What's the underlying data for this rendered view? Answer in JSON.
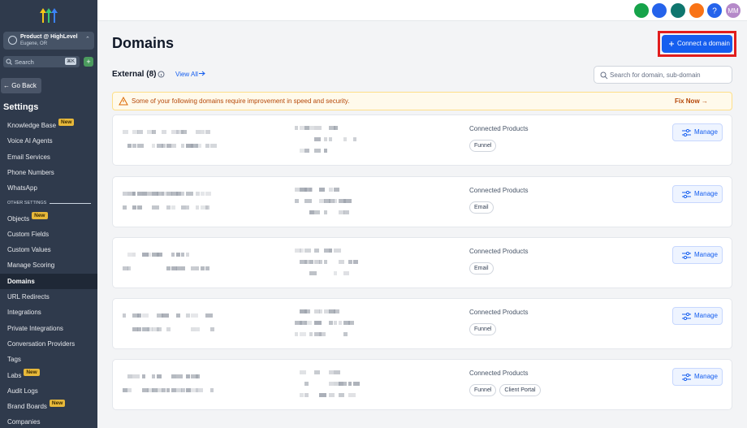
{
  "sidebar": {
    "account": {
      "name": "Product @ HighLevel",
      "location": "Eugene, OR"
    },
    "search": {
      "placeholder": "Search",
      "shortcut": "⌘K"
    },
    "back": "Go Back",
    "heading": "Settings",
    "main_items": [
      {
        "label": "Knowledge Base",
        "badge": "New"
      },
      {
        "label": "Voice AI Agents"
      },
      {
        "label": "Email Services"
      },
      {
        "label": "Phone Numbers"
      },
      {
        "label": "WhatsApp"
      }
    ],
    "other_label": "OTHER SETTINGS",
    "other_items": [
      {
        "label": "Objects",
        "badge": "New"
      },
      {
        "label": "Custom Fields"
      },
      {
        "label": "Custom Values"
      },
      {
        "label": "Manage Scoring"
      },
      {
        "label": "Domains",
        "active": true
      },
      {
        "label": "URL Redirects"
      },
      {
        "label": "Integrations"
      },
      {
        "label": "Private Integrations"
      },
      {
        "label": "Conversation Providers"
      },
      {
        "label": "Tags"
      },
      {
        "label": "Labs",
        "badge": "New"
      },
      {
        "label": "Audit Logs"
      },
      {
        "label": "Brand Boards",
        "badge": "New"
      },
      {
        "label": "Companies"
      }
    ]
  },
  "topbar": {
    "help": "?",
    "avatar": "MM"
  },
  "header": {
    "title": "Domains",
    "action": "Connect a domain"
  },
  "toolbar": {
    "tab": "External (8)",
    "view_all": "View All",
    "search_placeholder": "Search for domain, sub-domain"
  },
  "banner": {
    "message": "Some of your following domains require improvement in speed and security.",
    "action": "Fix Now"
  },
  "domains": [
    {
      "products_label": "Connected Products",
      "products": [
        "Funnel"
      ],
      "action": "Manage"
    },
    {
      "products_label": "Connected Products",
      "products": [
        "Email"
      ],
      "action": "Manage"
    },
    {
      "products_label": "Connected Products",
      "products": [
        "Email"
      ],
      "action": "Manage"
    },
    {
      "products_label": "Connected Products",
      "products": [
        "Funnel"
      ],
      "action": "Manage"
    },
    {
      "products_label": "Connected Products",
      "products": [
        "Funnel",
        "Client Portal"
      ],
      "action": "Manage"
    }
  ]
}
